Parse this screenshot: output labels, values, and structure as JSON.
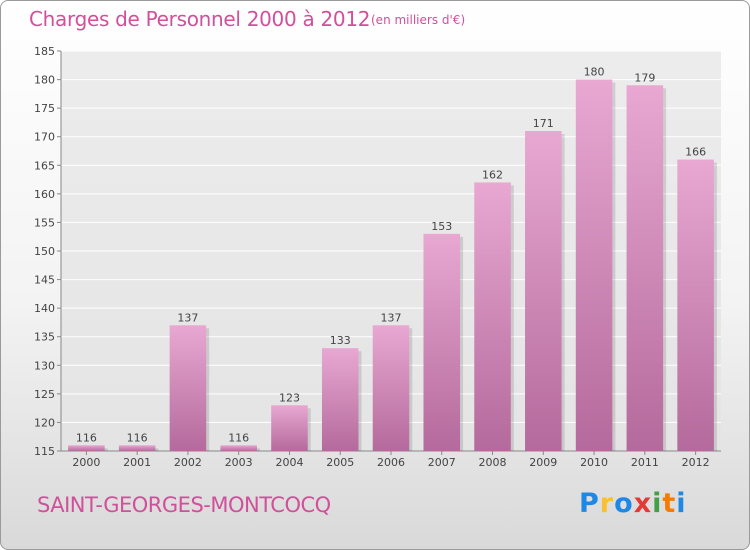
{
  "header": {
    "title": "Charges de Personnel 2000 à 2012",
    "unit": "(en milliers d'€)"
  },
  "footer": {
    "commune": "SAINT-GEORGES-MONTCOCQ",
    "logo_letters": [
      {
        "char": "P",
        "color": "#1e88e5"
      },
      {
        "char": "r",
        "color": "#fbc02d"
      },
      {
        "char": "o",
        "color": "#1e88e5"
      },
      {
        "char": "x",
        "color": "#e53935"
      },
      {
        "char": "i",
        "color": "#43a047"
      },
      {
        "char": "t",
        "color": "#f57c00"
      },
      {
        "char": "i",
        "color": "#1e88e5"
      }
    ]
  },
  "colors": {
    "accent": "#d0509a",
    "bar_top": "#e8a8d2",
    "bar_bottom": "#b46a9c"
  },
  "chart_data": {
    "type": "bar",
    "categories": [
      "2000",
      "2001",
      "2002",
      "2003",
      "2004",
      "2005",
      "2006",
      "2007",
      "2008",
      "2009",
      "2010",
      "2011",
      "2012"
    ],
    "values": [
      116,
      116,
      137,
      116,
      123,
      133,
      137,
      153,
      162,
      171,
      180,
      179,
      166
    ],
    "title": "Charges de Personnel 2000 à 2012",
    "xlabel": "",
    "ylabel": "",
    "ylim": [
      115,
      185
    ],
    "yticks": [
      115,
      120,
      125,
      130,
      135,
      140,
      145,
      150,
      155,
      160,
      165,
      170,
      175,
      180,
      185
    ],
    "grid": true,
    "legend": "none"
  }
}
